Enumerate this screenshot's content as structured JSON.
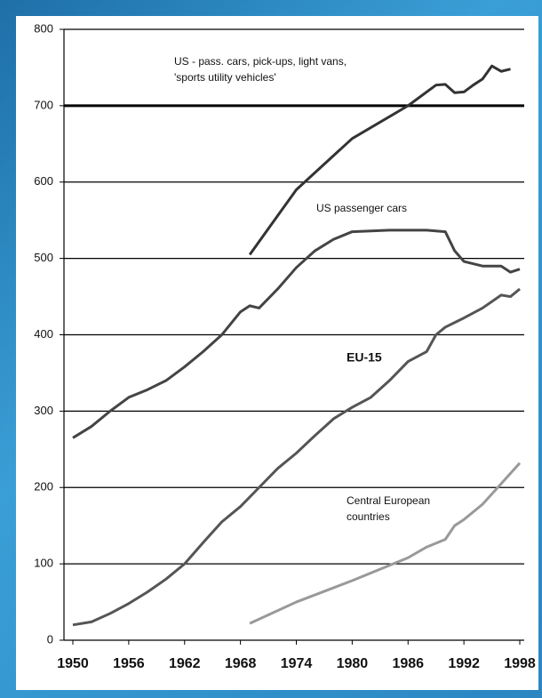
{
  "chart_data": {
    "type": "line",
    "xlim": [
      1950,
      1998
    ],
    "xticks": [
      1950,
      1956,
      1962,
      1968,
      1974,
      1980,
      1986,
      1992,
      1998
    ],
    "ylim": [
      0,
      800
    ],
    "yticks": [
      0,
      100,
      200,
      300,
      400,
      500,
      600,
      700,
      800
    ],
    "grid": true,
    "emphasized_ytick": 700,
    "series": [
      {
        "name": "US - pass. cars, pick-ups, light vans, 'sports utility vehicles'",
        "color": "#333333",
        "x": [
          1969,
          1974,
          1980,
          1986,
          1989,
          1990,
          1991,
          1992,
          1993,
          1994,
          1995,
          1996,
          1997
        ],
        "values": [
          505,
          590,
          657,
          700,
          727,
          728,
          717,
          718,
          727,
          735,
          752,
          745,
          748
        ]
      },
      {
        "name": "US passenger cars",
        "color": "#444444",
        "x": [
          1950,
          1952,
          1954,
          1956,
          1958,
          1960,
          1962,
          1964,
          1966,
          1968,
          1969,
          1970,
          1972,
          1974,
          1976,
          1978,
          1980,
          1984,
          1988,
          1990,
          1991,
          1992,
          1994,
          1996,
          1997,
          1998
        ],
        "values": [
          265,
          280,
          300,
          318,
          328,
          340,
          358,
          378,
          400,
          430,
          438,
          435,
          460,
          488,
          510,
          525,
          535,
          537,
          537,
          535,
          510,
          496,
          490,
          490,
          482,
          486
        ]
      },
      {
        "name": "EU-15",
        "color": "#555555",
        "x": [
          1950,
          1952,
          1954,
          1956,
          1958,
          1960,
          1962,
          1964,
          1966,
          1968,
          1970,
          1972,
          1974,
          1976,
          1978,
          1980,
          1982,
          1984,
          1986,
          1988,
          1989,
          1990,
          1992,
          1994,
          1996,
          1997,
          1998
        ],
        "values": [
          20,
          24,
          35,
          48,
          63,
          80,
          100,
          128,
          155,
          175,
          200,
          225,
          245,
          268,
          290,
          305,
          318,
          340,
          365,
          378,
          400,
          410,
          422,
          435,
          452,
          450,
          460
        ]
      },
      {
        "name": "Central European countries",
        "color": "#999999",
        "x": [
          1969,
          1974,
          1980,
          1986,
          1988,
          1990,
          1991,
          1992,
          1994,
          1996,
          1998
        ],
        "values": [
          22,
          50,
          78,
          108,
          122,
          132,
          150,
          158,
          178,
          205,
          232
        ]
      }
    ],
    "annotations": [
      {
        "lines": [
          "US - pass. cars, pick-ups, light vans,",
          "'sports utility vehicles'"
        ]
      },
      {
        "lines": [
          "US passenger cars"
        ]
      },
      {
        "lines": [
          "EU-15"
        ]
      },
      {
        "lines": [
          "Central European",
          "countries"
        ]
      }
    ]
  }
}
